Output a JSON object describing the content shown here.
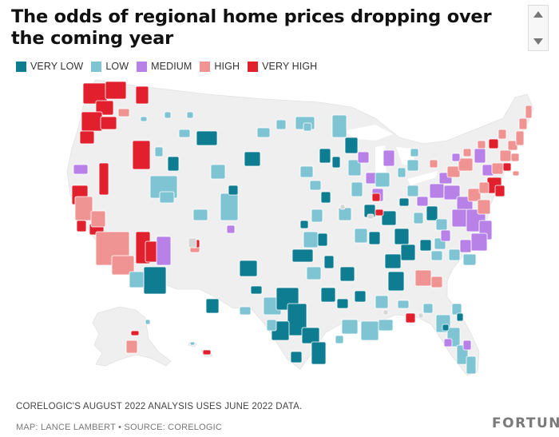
{
  "title": "The odds of regional home prices dropping over the coming year",
  "legend": [
    {
      "label": "VERY LOW",
      "color": "#0e7d91"
    },
    {
      "label": "LOW",
      "color": "#7ec4d3"
    },
    {
      "label": "MEDIUM",
      "color": "#b881e8"
    },
    {
      "label": "HIGH",
      "color": "#f09393"
    },
    {
      "label": "VERY HIGH",
      "color": "#e21f2d"
    }
  ],
  "colors": {
    "land": "#efefef",
    "border": "#ffffff",
    "no_data": "#d6d6d6"
  },
  "map": {
    "region": "United States (contiguous, Alaska, Hawaii)",
    "unit": "metro areas",
    "pattern_notes": [
      "Very high: Pacific Northwest, Northern California, Idaho, Utah, Florida panhandle, Northeast corridor",
      "High: Southern California, Nevada, Atlanta area, Northeast",
      "Medium: Arizona (Flagstaff area), Appalachia, Mid-Atlantic, Great Lakes",
      "Low / very low: Great Plains, Texas, South, Midwest"
    ]
  },
  "footnote": "CORELOGIC'S AUGUST 2022 ANALYSIS USES JUNE 2022 DATA.",
  "credit": "MAP: LANCE LAMBERT • SOURCE: CORELOGIC",
  "brand": "FORTUNE"
}
